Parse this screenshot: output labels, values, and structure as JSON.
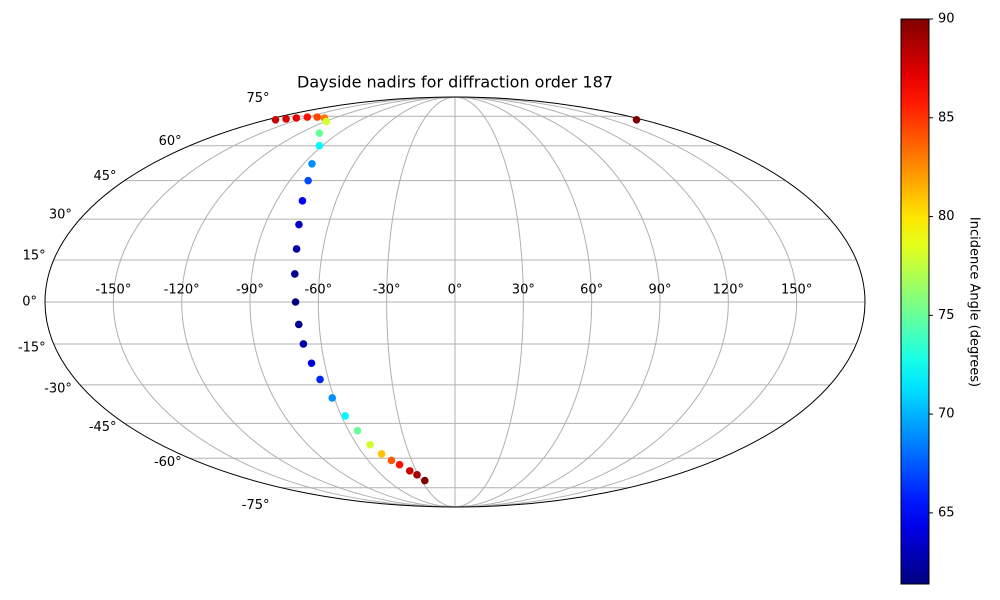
{
  "chart_data": {
    "type": "scatter",
    "projection": "mollweide",
    "title": "Dayside nadirs for diffraction order 187",
    "grid": true,
    "xlim": [
      -180,
      180
    ],
    "ylim": [
      -90,
      90
    ],
    "xticks": [
      {
        "value": -150,
        "label": "-150°"
      },
      {
        "value": -120,
        "label": "-120°"
      },
      {
        "value": -90,
        "label": "-90°"
      },
      {
        "value": -60,
        "label": "-60°"
      },
      {
        "value": -30,
        "label": "-30°"
      },
      {
        "value": 0,
        "label": "0°"
      },
      {
        "value": 30,
        "label": "30°"
      },
      {
        "value": 60,
        "label": "60°"
      },
      {
        "value": 90,
        "label": "90°"
      },
      {
        "value": 120,
        "label": "120°"
      },
      {
        "value": 150,
        "label": "150°"
      }
    ],
    "yticks": [
      {
        "value": -75,
        "label": "-75°"
      },
      {
        "value": -60,
        "label": "-60°"
      },
      {
        "value": -45,
        "label": "-45°"
      },
      {
        "value": -30,
        "label": "-30°"
      },
      {
        "value": -15,
        "label": "-15°"
      },
      {
        "value": 0,
        "label": "0°"
      },
      {
        "value": 15,
        "label": "15°"
      },
      {
        "value": 30,
        "label": "30°"
      },
      {
        "value": 45,
        "label": "45°"
      },
      {
        "value": 60,
        "label": "60°"
      },
      {
        "value": 75,
        "label": "75°"
      }
    ],
    "colormap": "jet",
    "clim": [
      61.4,
      90
    ],
    "cticks": [
      65,
      70,
      75,
      80,
      85,
      90
    ],
    "colorbar_label": "Incidence Angle (degrees)",
    "series": [
      {
        "x": [
          -172,
          -165,
          -158,
          -150,
          -140,
          -130,
          -119,
          -105,
          -92,
          -85,
          -80,
          -77,
          -74,
          -72,
          -71,
          -70,
          -69,
          -68,
          -66,
          -64,
          -61,
          -58,
          -55,
          -52,
          -48,
          -44,
          -40,
          -35,
          -31,
          -27,
          174
        ],
        "y": [
          73,
          73.5,
          74,
          74.5,
          74.5,
          74,
          72,
          66,
          60,
          52,
          45,
          37,
          28,
          19,
          10,
          0,
          -8,
          -15,
          -22,
          -28,
          -35,
          -42,
          -48,
          -54,
          -58,
          -61,
          -63,
          -66,
          -68,
          -71,
          73
        ],
        "c": [
          88,
          87.5,
          87,
          86,
          84.5,
          83,
          78,
          75,
          72,
          69,
          67,
          65,
          63.5,
          62.5,
          61.8,
          61.5,
          61.8,
          62.5,
          64,
          66,
          69,
          72,
          75,
          78,
          81,
          84,
          86,
          88,
          89,
          90,
          90
        ]
      }
    ]
  }
}
